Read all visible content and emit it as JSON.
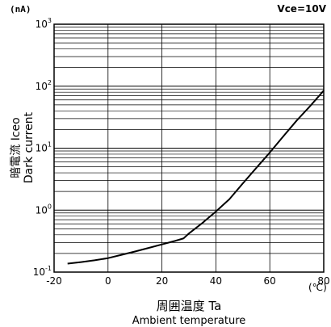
{
  "chart_data": {
    "type": "line",
    "condition": "Vce=10V",
    "y_unit": "(nA)",
    "x_unit": "(℃)",
    "xlabel_jp": "周囲温度 Ta",
    "xlabel_en": "Ambient temperature",
    "ylabel_jp": "暗電流 Iceo",
    "ylabel_en": "Dark current",
    "xlim": [
      -20,
      80
    ],
    "ylim": [
      0.1,
      1000
    ],
    "y_scale": "log",
    "grid": true,
    "x_ticks": [
      -20,
      0,
      20,
      40,
      60,
      80
    ],
    "y_ticks": [
      {
        "base": "10",
        "exp": "-1",
        "value": 0.1
      },
      {
        "base": "10",
        "exp": "0",
        "value": 1
      },
      {
        "base": "10",
        "exp": "1",
        "value": 10
      },
      {
        "base": "10",
        "exp": "2",
        "value": 100
      },
      {
        "base": "10",
        "exp": "3",
        "value": 1000
      }
    ],
    "series": [
      {
        "x": [
          -15,
          -10,
          -5,
          0,
          5,
          10,
          15,
          20,
          25,
          28,
          30,
          35,
          40,
          45,
          50,
          55,
          60,
          65,
          70,
          75,
          80
        ],
        "y": [
          0.137,
          0.145,
          0.155,
          0.168,
          0.19,
          0.215,
          0.245,
          0.28,
          0.32,
          0.35,
          0.42,
          0.62,
          0.95,
          1.5,
          2.7,
          4.8,
          8.5,
          15.5,
          28,
          48,
          85
        ]
      }
    ],
    "colors": {
      "line": "#000000",
      "grid": "#000000",
      "background": "#ffffff"
    }
  }
}
